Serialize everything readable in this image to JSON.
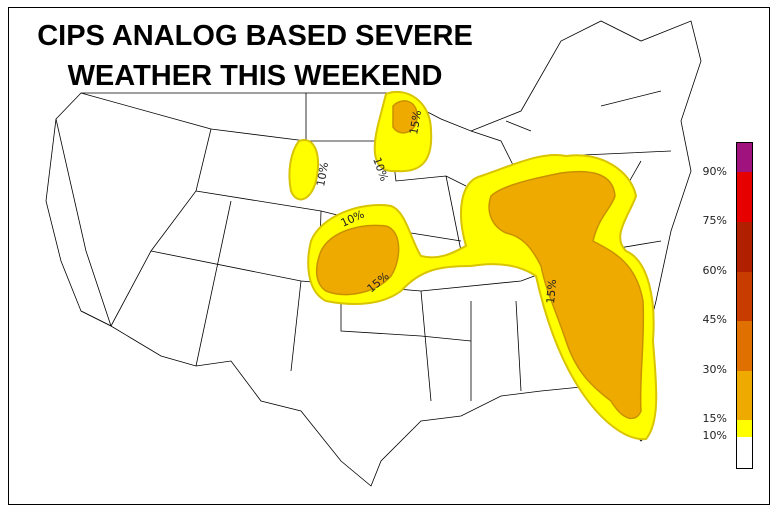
{
  "title": {
    "line1": "CIPS ANALOG BASED SEVERE",
    "line2": "WEATHER THIS WEEKEND"
  },
  "contour_labels": [
    "10%",
    "10%",
    "10%",
    "15%",
    "15%",
    "15%"
  ],
  "colorbar": {
    "ticks": [
      "10%",
      "15%",
      "30%",
      "45%",
      "60%",
      "75%",
      "90%"
    ],
    "colors": [
      "#ffffff",
      "#ffff00",
      "#efaa00",
      "#e07000",
      "#c83c00",
      "#b02000",
      "#e60000",
      "#a0137e"
    ]
  },
  "fill_colors": {
    "p10": "#ffff00",
    "p15": "#efaa00",
    "edge": "#d8c400"
  }
}
